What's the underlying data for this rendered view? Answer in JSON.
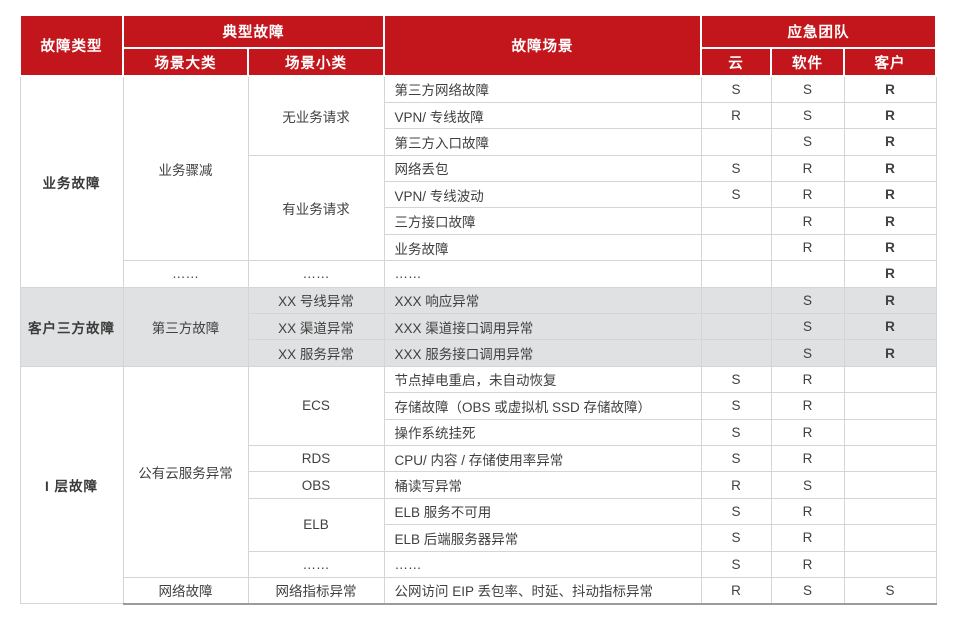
{
  "colors": {
    "header_bg": "#C3161C",
    "header_text": "#FFFFFF",
    "gray_row_bg": "#E0E1E2",
    "cell_border": "#D5D5D7",
    "bottom_border": "#9B9B9B",
    "body_text": "#404040"
  },
  "header": {
    "fault_type": "故障类型",
    "typical_fault": "典型故障",
    "scenario_major": "场景大类",
    "scenario_minor": "场景小类",
    "fault_scenario": "故障场景",
    "emergency_team": "应急团队",
    "cloud": "云",
    "software": "软件",
    "customer": "客户"
  },
  "table": {
    "rows": [
      {
        "gray": false,
        "cells": [
          {
            "col": "type",
            "t": "业务故障",
            "rs": 8
          },
          {
            "col": "major",
            "t": "业务骤减",
            "rs": 7
          },
          {
            "col": "minor",
            "t": "无业务请求",
            "rs": 3
          },
          {
            "col": "scenario",
            "t": "第三方网络故障"
          },
          {
            "col": "cloud",
            "t": "S"
          },
          {
            "col": "software",
            "t": "S"
          },
          {
            "col": "customer",
            "t": "R"
          }
        ]
      },
      {
        "gray": false,
        "cells": [
          {
            "col": "scenario",
            "t": "VPN/ 专线故障"
          },
          {
            "col": "cloud",
            "t": "R"
          },
          {
            "col": "software",
            "t": "S"
          },
          {
            "col": "customer",
            "t": "R"
          }
        ]
      },
      {
        "gray": false,
        "cells": [
          {
            "col": "scenario",
            "t": "第三方入口故障"
          },
          {
            "col": "cloud",
            "t": ""
          },
          {
            "col": "software",
            "t": "S"
          },
          {
            "col": "customer",
            "t": "R"
          }
        ]
      },
      {
        "gray": false,
        "cells": [
          {
            "col": "minor",
            "t": "有业务请求",
            "rs": 4
          },
          {
            "col": "scenario",
            "t": "网络丢包"
          },
          {
            "col": "cloud",
            "t": "S"
          },
          {
            "col": "software",
            "t": "R"
          },
          {
            "col": "customer",
            "t": "R"
          }
        ]
      },
      {
        "gray": false,
        "cells": [
          {
            "col": "scenario",
            "t": "VPN/ 专线波动"
          },
          {
            "col": "cloud",
            "t": "S"
          },
          {
            "col": "software",
            "t": "R"
          },
          {
            "col": "customer",
            "t": "R"
          }
        ]
      },
      {
        "gray": false,
        "cells": [
          {
            "col": "scenario",
            "t": "三方接口故障"
          },
          {
            "col": "cloud",
            "t": ""
          },
          {
            "col": "software",
            "t": "R"
          },
          {
            "col": "customer",
            "t": "R"
          }
        ]
      },
      {
        "gray": false,
        "cells": [
          {
            "col": "scenario",
            "t": "业务故障"
          },
          {
            "col": "cloud",
            "t": ""
          },
          {
            "col": "software",
            "t": "R"
          },
          {
            "col": "customer",
            "t": "R"
          }
        ]
      },
      {
        "gray": false,
        "cells": [
          {
            "col": "major",
            "t": "……"
          },
          {
            "col": "minor",
            "t": "……"
          },
          {
            "col": "scenario",
            "t": "……"
          },
          {
            "col": "cloud",
            "t": ""
          },
          {
            "col": "software",
            "t": ""
          },
          {
            "col": "customer",
            "t": "R"
          }
        ]
      },
      {
        "gray": true,
        "cells": [
          {
            "col": "type",
            "t": "客户三方故障",
            "rs": 3
          },
          {
            "col": "major",
            "t": "第三方故障",
            "rs": 3
          },
          {
            "col": "minor",
            "t": "XX 号线异常"
          },
          {
            "col": "scenario",
            "t": "XXX 响应异常"
          },
          {
            "col": "cloud",
            "t": ""
          },
          {
            "col": "software",
            "t": "S"
          },
          {
            "col": "customer",
            "t": "R"
          }
        ]
      },
      {
        "gray": true,
        "cells": [
          {
            "col": "minor",
            "t": "XX 渠道异常"
          },
          {
            "col": "scenario",
            "t": "XXX 渠道接口调用异常"
          },
          {
            "col": "cloud",
            "t": ""
          },
          {
            "col": "software",
            "t": "S"
          },
          {
            "col": "customer",
            "t": "R"
          }
        ]
      },
      {
        "gray": true,
        "cells": [
          {
            "col": "minor",
            "t": "XX 服务异常"
          },
          {
            "col": "scenario",
            "t": "XXX 服务接口调用异常"
          },
          {
            "col": "cloud",
            "t": ""
          },
          {
            "col": "software",
            "t": "S"
          },
          {
            "col": "customer",
            "t": "R"
          }
        ]
      },
      {
        "gray": false,
        "cells": [
          {
            "col": "type",
            "t": "I 层故障",
            "rs": 9
          },
          {
            "col": "major",
            "t": "公有云服务异常",
            "rs": 8
          },
          {
            "col": "minor",
            "t": "ECS",
            "rs": 3
          },
          {
            "col": "scenario",
            "t": "节点掉电重启，未自动恢复"
          },
          {
            "col": "cloud",
            "t": "S"
          },
          {
            "col": "software",
            "t": "R"
          },
          {
            "col": "customer",
            "t": ""
          }
        ]
      },
      {
        "gray": false,
        "cells": [
          {
            "col": "scenario",
            "t": "存储故障（OBS 或虚拟机 SSD 存储故障）"
          },
          {
            "col": "cloud",
            "t": "S"
          },
          {
            "col": "software",
            "t": "R"
          },
          {
            "col": "customer",
            "t": ""
          }
        ]
      },
      {
        "gray": false,
        "cells": [
          {
            "col": "scenario",
            "t": "操作系统挂死"
          },
          {
            "col": "cloud",
            "t": "S"
          },
          {
            "col": "software",
            "t": "R"
          },
          {
            "col": "customer",
            "t": ""
          }
        ]
      },
      {
        "gray": false,
        "cells": [
          {
            "col": "minor",
            "t": "RDS"
          },
          {
            "col": "scenario",
            "t": "CPU/ 内容 / 存储使用率异常"
          },
          {
            "col": "cloud",
            "t": "S"
          },
          {
            "col": "software",
            "t": "R"
          },
          {
            "col": "customer",
            "t": ""
          }
        ]
      },
      {
        "gray": false,
        "cells": [
          {
            "col": "minor",
            "t": "OBS"
          },
          {
            "col": "scenario",
            "t": "桶读写异常"
          },
          {
            "col": "cloud",
            "t": "R"
          },
          {
            "col": "software",
            "t": "S"
          },
          {
            "col": "customer",
            "t": ""
          }
        ]
      },
      {
        "gray": false,
        "cells": [
          {
            "col": "minor",
            "t": "ELB",
            "rs": 2
          },
          {
            "col": "scenario",
            "t": "ELB 服务不可用"
          },
          {
            "col": "cloud",
            "t": "S"
          },
          {
            "col": "software",
            "t": "R"
          },
          {
            "col": "customer",
            "t": ""
          }
        ]
      },
      {
        "gray": false,
        "cells": [
          {
            "col": "scenario",
            "t": "ELB 后端服务器异常"
          },
          {
            "col": "cloud",
            "t": "S"
          },
          {
            "col": "software",
            "t": "R"
          },
          {
            "col": "customer",
            "t": ""
          }
        ]
      },
      {
        "gray": false,
        "cells": [
          {
            "col": "minor",
            "t": "……"
          },
          {
            "col": "scenario",
            "t": "……"
          },
          {
            "col": "cloud",
            "t": "S"
          },
          {
            "col": "software",
            "t": "R"
          },
          {
            "col": "customer",
            "t": ""
          }
        ]
      },
      {
        "gray": false,
        "cells": [
          {
            "col": "major",
            "t": "网络故障"
          },
          {
            "col": "minor",
            "t": "网络指标异常"
          },
          {
            "col": "scenario",
            "t": "公网访问 EIP 丢包率、时延、抖动指标异常"
          },
          {
            "col": "cloud",
            "t": "R"
          },
          {
            "col": "software",
            "t": "S"
          },
          {
            "col": "customer",
            "t": "S"
          }
        ]
      }
    ]
  }
}
